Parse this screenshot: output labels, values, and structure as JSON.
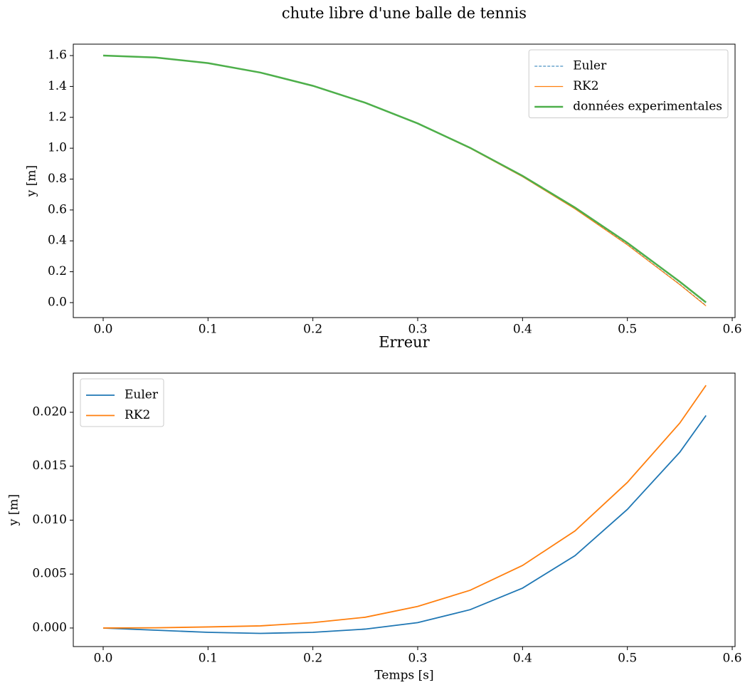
{
  "title": "chute libre d'une balle de tennis",
  "chart_data": [
    {
      "type": "line",
      "ylabel": "y [m]",
      "x": [
        0,
        0.05,
        0.1,
        0.15,
        0.2,
        0.25,
        0.3,
        0.35,
        0.4,
        0.45,
        0.5,
        0.55,
        0.575
      ],
      "series": [
        {
          "name": "Euler",
          "color": "#1f77b4",
          "linestyle": "dashed",
          "linewidth": 1,
          "values": [
            1.6,
            1.5879,
            1.5515,
            1.4903,
            1.4047,
            1.2945,
            1.1601,
            1.0009,
            0.8173,
            0.609,
            0.3763,
            0.119,
            -0.0189
          ]
        },
        {
          "name": "RK2",
          "color": "#ff7f0e",
          "linestyle": "solid",
          "linewidth": 1.2,
          "values": [
            1.6,
            1.5877,
            1.551,
            1.4896,
            1.4038,
            1.2934,
            1.1586,
            0.9991,
            0.8152,
            0.6067,
            0.3738,
            0.1163,
            -0.0217
          ]
        },
        {
          "name": "données experimentales",
          "color": "#4daf4a",
          "linestyle": "solid",
          "linewidth": 2.5,
          "values": [
            1.6,
            1.5877,
            1.5511,
            1.4898,
            1.4043,
            1.2944,
            1.1606,
            1.0026,
            0.821,
            0.6157,
            0.3873,
            0.1353,
            0.0008
          ]
        }
      ],
      "xlim": [
        -0.0285,
        0.6027
      ],
      "ylim": [
        -0.097,
        1.674
      ],
      "xticks": [
        {
          "value": 0,
          "label": "0.0"
        },
        0.1,
        0.2,
        0.3,
        0.4,
        0.5,
        0.6
      ],
      "yticks": [
        {
          "value": 0,
          "label": "0.0"
        },
        0.2,
        0.4,
        0.6,
        0.8,
        {
          "value": 1,
          "label": "1.0"
        },
        1.2,
        1.4,
        1.6
      ],
      "legend": "upper right"
    },
    {
      "type": "line",
      "title": "Erreur",
      "xlabel": "Temps [s]",
      "ylabel": "y [m]",
      "x": [
        0,
        0.05,
        0.1,
        0.15,
        0.2,
        0.25,
        0.3,
        0.35,
        0.4,
        0.45,
        0.5,
        0.55,
        0.575
      ],
      "series": [
        {
          "name": "Euler",
          "color": "#1f77b4",
          "linestyle": "solid",
          "linewidth": 1.8,
          "values": [
            0,
            -0.0002,
            -0.0004,
            -0.0005,
            -0.0004,
            -0.0001,
            0.0005,
            0.0017,
            0.0037,
            0.0067,
            0.011,
            0.0163,
            0.0197
          ]
        },
        {
          "name": "RK2",
          "color": "#ff7f0e",
          "linestyle": "solid",
          "linewidth": 1.8,
          "values": [
            0,
            2e-05,
            0.0001,
            0.0002,
            0.0005,
            0.001,
            0.002,
            0.0035,
            0.0058,
            0.009,
            0.0135,
            0.019,
            0.0225
          ]
        }
      ],
      "xlim": [
        -0.0285,
        0.6027
      ],
      "ylim": [
        -0.00172,
        0.02363
      ],
      "xticks": [
        {
          "value": 0,
          "label": "0.0"
        },
        0.1,
        0.2,
        0.3,
        0.4,
        0.5,
        0.6
      ],
      "yticks": [
        {
          "value": 0,
          "label": "0.000"
        },
        {
          "value": 0.005,
          "label": "0.005"
        },
        {
          "value": 0.01,
          "label": "0.010"
        },
        {
          "value": 0.015,
          "label": "0.015"
        },
        {
          "value": 0.02,
          "label": "0.020"
        }
      ],
      "legend": "upper left"
    }
  ]
}
